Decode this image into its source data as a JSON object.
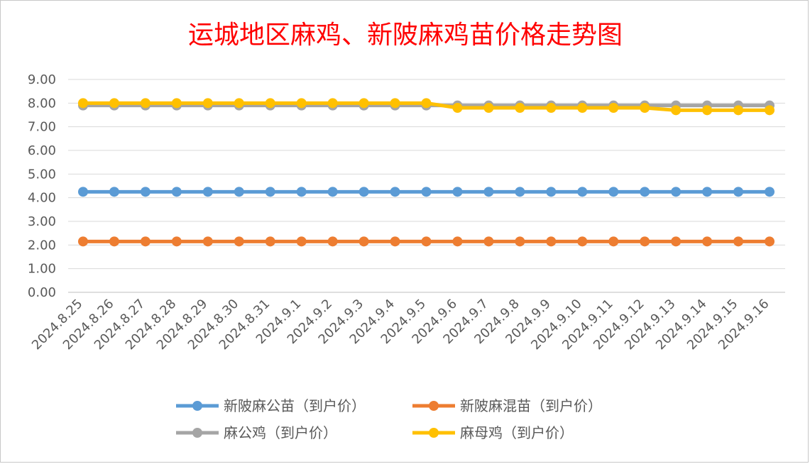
{
  "chart_data": {
    "type": "line",
    "title": "运城地区麻鸡、新陂麻鸡苗价格走势图",
    "x": [
      "2024.8.25",
      "2024.8.26",
      "2024.8.27",
      "2024.8.28",
      "2024.8.29",
      "2024.8.30",
      "2024.8.31",
      "2024.9.1",
      "2024.9.2",
      "2024.9.3",
      "2024.9.4",
      "2024.9.5",
      "2024.9.6",
      "2024.9.7",
      "2024.9.8",
      "2024.9.9",
      "2024.9.10",
      "2024.9.11",
      "2024.9.12",
      "2024.9.13",
      "2024.9.14",
      "2024.9.15",
      "2024.9.16"
    ],
    "ylim": [
      0,
      9
    ],
    "yticks": [
      "0.00",
      "1.00",
      "2.00",
      "3.00",
      "4.00",
      "5.00",
      "6.00",
      "7.00",
      "8.00",
      "9.00"
    ],
    "grid": true,
    "legend_position": "bottom",
    "series": [
      {
        "name": "新陂麻公苗（到户价）",
        "color": "#5b9bd5",
        "values": [
          4.25,
          4.25,
          4.25,
          4.25,
          4.25,
          4.25,
          4.25,
          4.25,
          4.25,
          4.25,
          4.25,
          4.25,
          4.25,
          4.25,
          4.25,
          4.25,
          4.25,
          4.25,
          4.25,
          4.25,
          4.25,
          4.25,
          4.25
        ]
      },
      {
        "name": "新陂麻混苗（到户价）",
        "color": "#ed7d31",
        "values": [
          2.15,
          2.15,
          2.15,
          2.15,
          2.15,
          2.15,
          2.15,
          2.15,
          2.15,
          2.15,
          2.15,
          2.15,
          2.15,
          2.15,
          2.15,
          2.15,
          2.15,
          2.15,
          2.15,
          2.15,
          2.15,
          2.15,
          2.15
        ]
      },
      {
        "name": "麻公鸡（到户价）",
        "color": "#a5a5a5",
        "values": [
          7.9,
          7.9,
          7.9,
          7.9,
          7.9,
          7.9,
          7.9,
          7.9,
          7.9,
          7.9,
          7.9,
          7.9,
          7.9,
          7.9,
          7.9,
          7.9,
          7.9,
          7.9,
          7.9,
          7.9,
          7.9,
          7.9,
          7.9
        ]
      },
      {
        "name": "麻母鸡（到户价）",
        "color": "#ffc000",
        "values": [
          8.0,
          8.0,
          8.0,
          8.0,
          8.0,
          8.0,
          8.0,
          8.0,
          8.0,
          8.0,
          8.0,
          8.0,
          7.8,
          7.8,
          7.8,
          7.8,
          7.8,
          7.8,
          7.8,
          7.7,
          7.7,
          7.7,
          7.7
        ]
      }
    ]
  }
}
